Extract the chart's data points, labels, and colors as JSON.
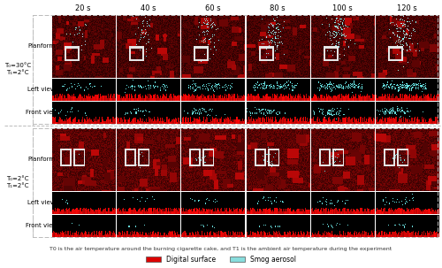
{
  "time_labels": [
    "20 s",
    "40 s",
    "60 s",
    "80 s",
    "100 s",
    "120 s"
  ],
  "row_labels_top": [
    "Planform",
    "Left view",
    "Front view"
  ],
  "row_labels_bottom": [
    "Planform",
    "Left view",
    "Front view"
  ],
  "left_label_top": "T₀=30°C\nT₁=2°C",
  "left_label_bottom": "T₀=2°C\nT₁=2°C",
  "footnote": "T0 is the air temperature around the burning cigarette cake, and T1 is the ambient air temperature during the experiment",
  "legend_digital_surface": "Digital surface",
  "legend_smog_aerosol": "Smog aerosol",
  "digital_surface_color": "#dd0000",
  "smog_aerosol_color": "#88dddd",
  "fig_bg_color": "#ffffff",
  "dashed_line_color": "#bbbbbb",
  "n_cols": 6
}
